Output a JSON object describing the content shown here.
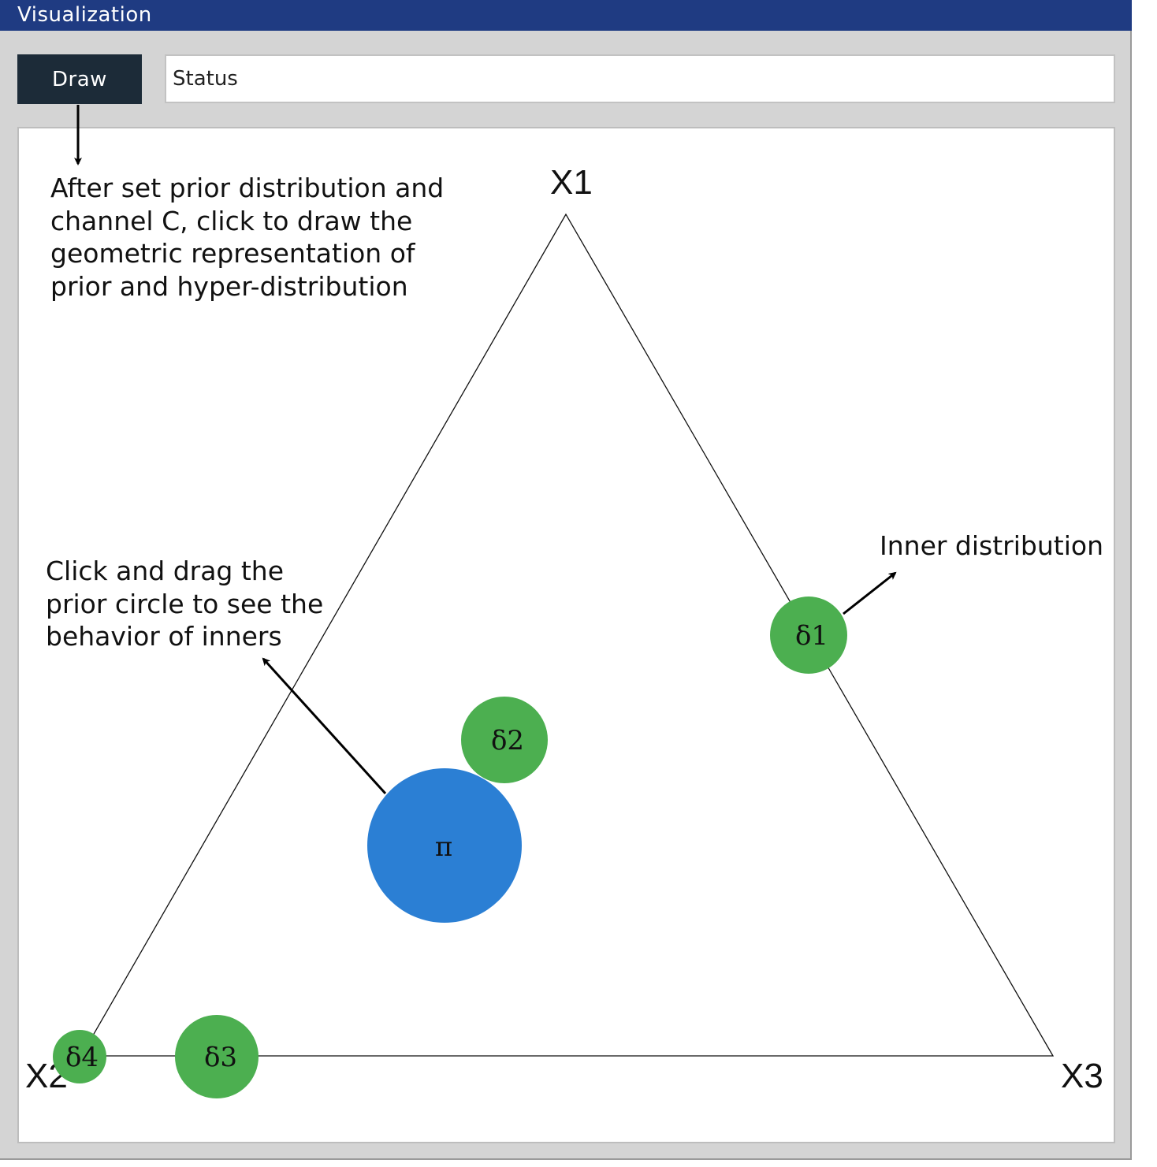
{
  "window": {
    "title": "Visualization"
  },
  "toolbar": {
    "draw_label": "Draw",
    "status_value": "Status"
  },
  "vertices": {
    "top": "X1",
    "left": "X2",
    "right": "X3"
  },
  "prior": {
    "label": "π",
    "color": "#2b7fd4"
  },
  "inners": {
    "color": "#4caf50",
    "items": [
      {
        "label": "δ1"
      },
      {
        "label": "δ2"
      },
      {
        "label": "δ3"
      },
      {
        "label": "δ4"
      }
    ]
  },
  "annotations": {
    "draw_help": [
      "After set prior distribution and",
      "channel C, click to draw the",
      "geometric representation of",
      "prior and hyper-distribution"
    ],
    "drag_help": [
      "Click and drag the",
      "prior circle to see the",
      "behavior of inners"
    ],
    "inner_help": "Inner distribution"
  }
}
